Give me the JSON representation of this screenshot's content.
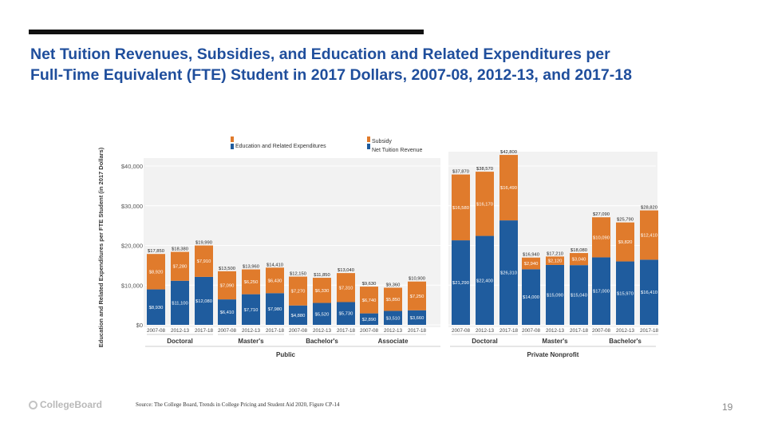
{
  "slide": {
    "title_line1": "Net Tuition Revenues, Subsidies, and Education and Related Expenditures per",
    "title_line2": "Full-Time Equivalent (FTE) Student in 2017 Dollars, 2007-08, 2012-13, and 2017-18",
    "source": "Source: The College Board, Trends in College Pricing and Student Aid 2020, Figure CP-14",
    "page_number": "19",
    "logo_text": "CollegeBoard"
  },
  "chart_data": {
    "type": "bar",
    "stacked": true,
    "ylabel": "Education and Related Expenditures per FTE Student (in 2017 Dollars)",
    "ylim": [
      0,
      40000
    ],
    "yticks": [
      0,
      10000,
      20000,
      30000,
      40000
    ],
    "ytick_labels": [
      "$0",
      "$10,000",
      "$20,000",
      "$30,000",
      "$40,000"
    ],
    "legend": [
      {
        "name": "Subsidy",
        "color": "#e07b2c"
      },
      {
        "name": "Education and Related Expenditures",
        "color": "#1f5c9e"
      },
      {
        "name": "Net Tuition Revenue",
        "color": "#1f5c9e"
      }
    ],
    "colors": {
      "subsidy": "#e07b2c",
      "net_tuition": "#1f5c9e"
    },
    "years": [
      "2007-08",
      "2012-13",
      "2017-18"
    ],
    "groups": [
      {
        "sector": "Public",
        "name": "Doctoral",
        "totals": [
          "$17,850",
          "$18,380",
          "$19,990"
        ],
        "subsidy": [
          "$8,920",
          "$7,280",
          "$7,910"
        ],
        "net_tuition": [
          "$8,930",
          "$11,100",
          "$12,080"
        ],
        "subsidy_values": [
          8920,
          7280,
          7910
        ],
        "net_values": [
          8930,
          11100,
          12080
        ]
      },
      {
        "sector": "Public",
        "name": "Master's",
        "totals": [
          "$13,500",
          "$13,960",
          "$14,410"
        ],
        "subsidy": [
          "$7,090",
          "$6,250",
          "$6,430"
        ],
        "net_tuition": [
          "$6,410",
          "$7,710",
          "$7,980"
        ],
        "subsidy_values": [
          7090,
          6250,
          6430
        ],
        "net_values": [
          6410,
          7710,
          7980
        ]
      },
      {
        "sector": "Public",
        "name": "Bachelor's",
        "totals": [
          "$12,150",
          "$11,850",
          "$13,040"
        ],
        "subsidy": [
          "$7,270",
          "$6,330",
          "$7,310"
        ],
        "net_tuition": [
          "$4,880",
          "$5,520",
          "$5,730"
        ],
        "subsidy_values": [
          7270,
          6330,
          7310
        ],
        "net_values": [
          4880,
          5520,
          5730
        ]
      },
      {
        "sector": "Public",
        "name": "Associate",
        "totals": [
          "$9,630",
          "$9,360",
          "$10,900"
        ],
        "subsidy": [
          "$6,740",
          "$5,850",
          "$7,250"
        ],
        "net_tuition": [
          "$2,890",
          "$3,510",
          "$3,660"
        ],
        "subsidy_values": [
          6740,
          5850,
          7250
        ],
        "net_values": [
          2890,
          3510,
          3660
        ]
      },
      {
        "sector": "Private Nonprofit",
        "name": "Doctoral",
        "totals": [
          "$37,870",
          "$38,570",
          "$42,800"
        ],
        "subsidy": [
          "$16,580",
          "$16,170",
          "$16,490"
        ],
        "net_tuition": [
          "$21,290",
          "$22,400",
          "$26,310"
        ],
        "subsidy_values": [
          16580,
          16170,
          16490
        ],
        "net_values": [
          21290,
          22400,
          26310
        ]
      },
      {
        "sector": "Private Nonprofit",
        "name": "Master's",
        "totals": [
          "$16,940",
          "$17,210",
          "$18,080"
        ],
        "subsidy": [
          "$2,940",
          "$2,120",
          "$3,040"
        ],
        "net_tuition": [
          "$14,000",
          "$15,090",
          "$15,040"
        ],
        "subsidy_values": [
          2940,
          2120,
          3040
        ],
        "net_values": [
          14000,
          15090,
          15040
        ]
      },
      {
        "sector": "Private Nonprofit",
        "name": "Bachelor's",
        "totals": [
          "$27,090",
          "$25,790",
          "$28,820"
        ],
        "subsidy": [
          "$10,090",
          "$9,820",
          "$12,410"
        ],
        "net_tuition": [
          "$17,000",
          "$15,970",
          "$16,410"
        ],
        "subsidy_values": [
          10090,
          9820,
          12410
        ],
        "net_values": [
          17000,
          15970,
          16410
        ]
      }
    ],
    "sectors": [
      "Public",
      "Private Nonprofit"
    ]
  }
}
